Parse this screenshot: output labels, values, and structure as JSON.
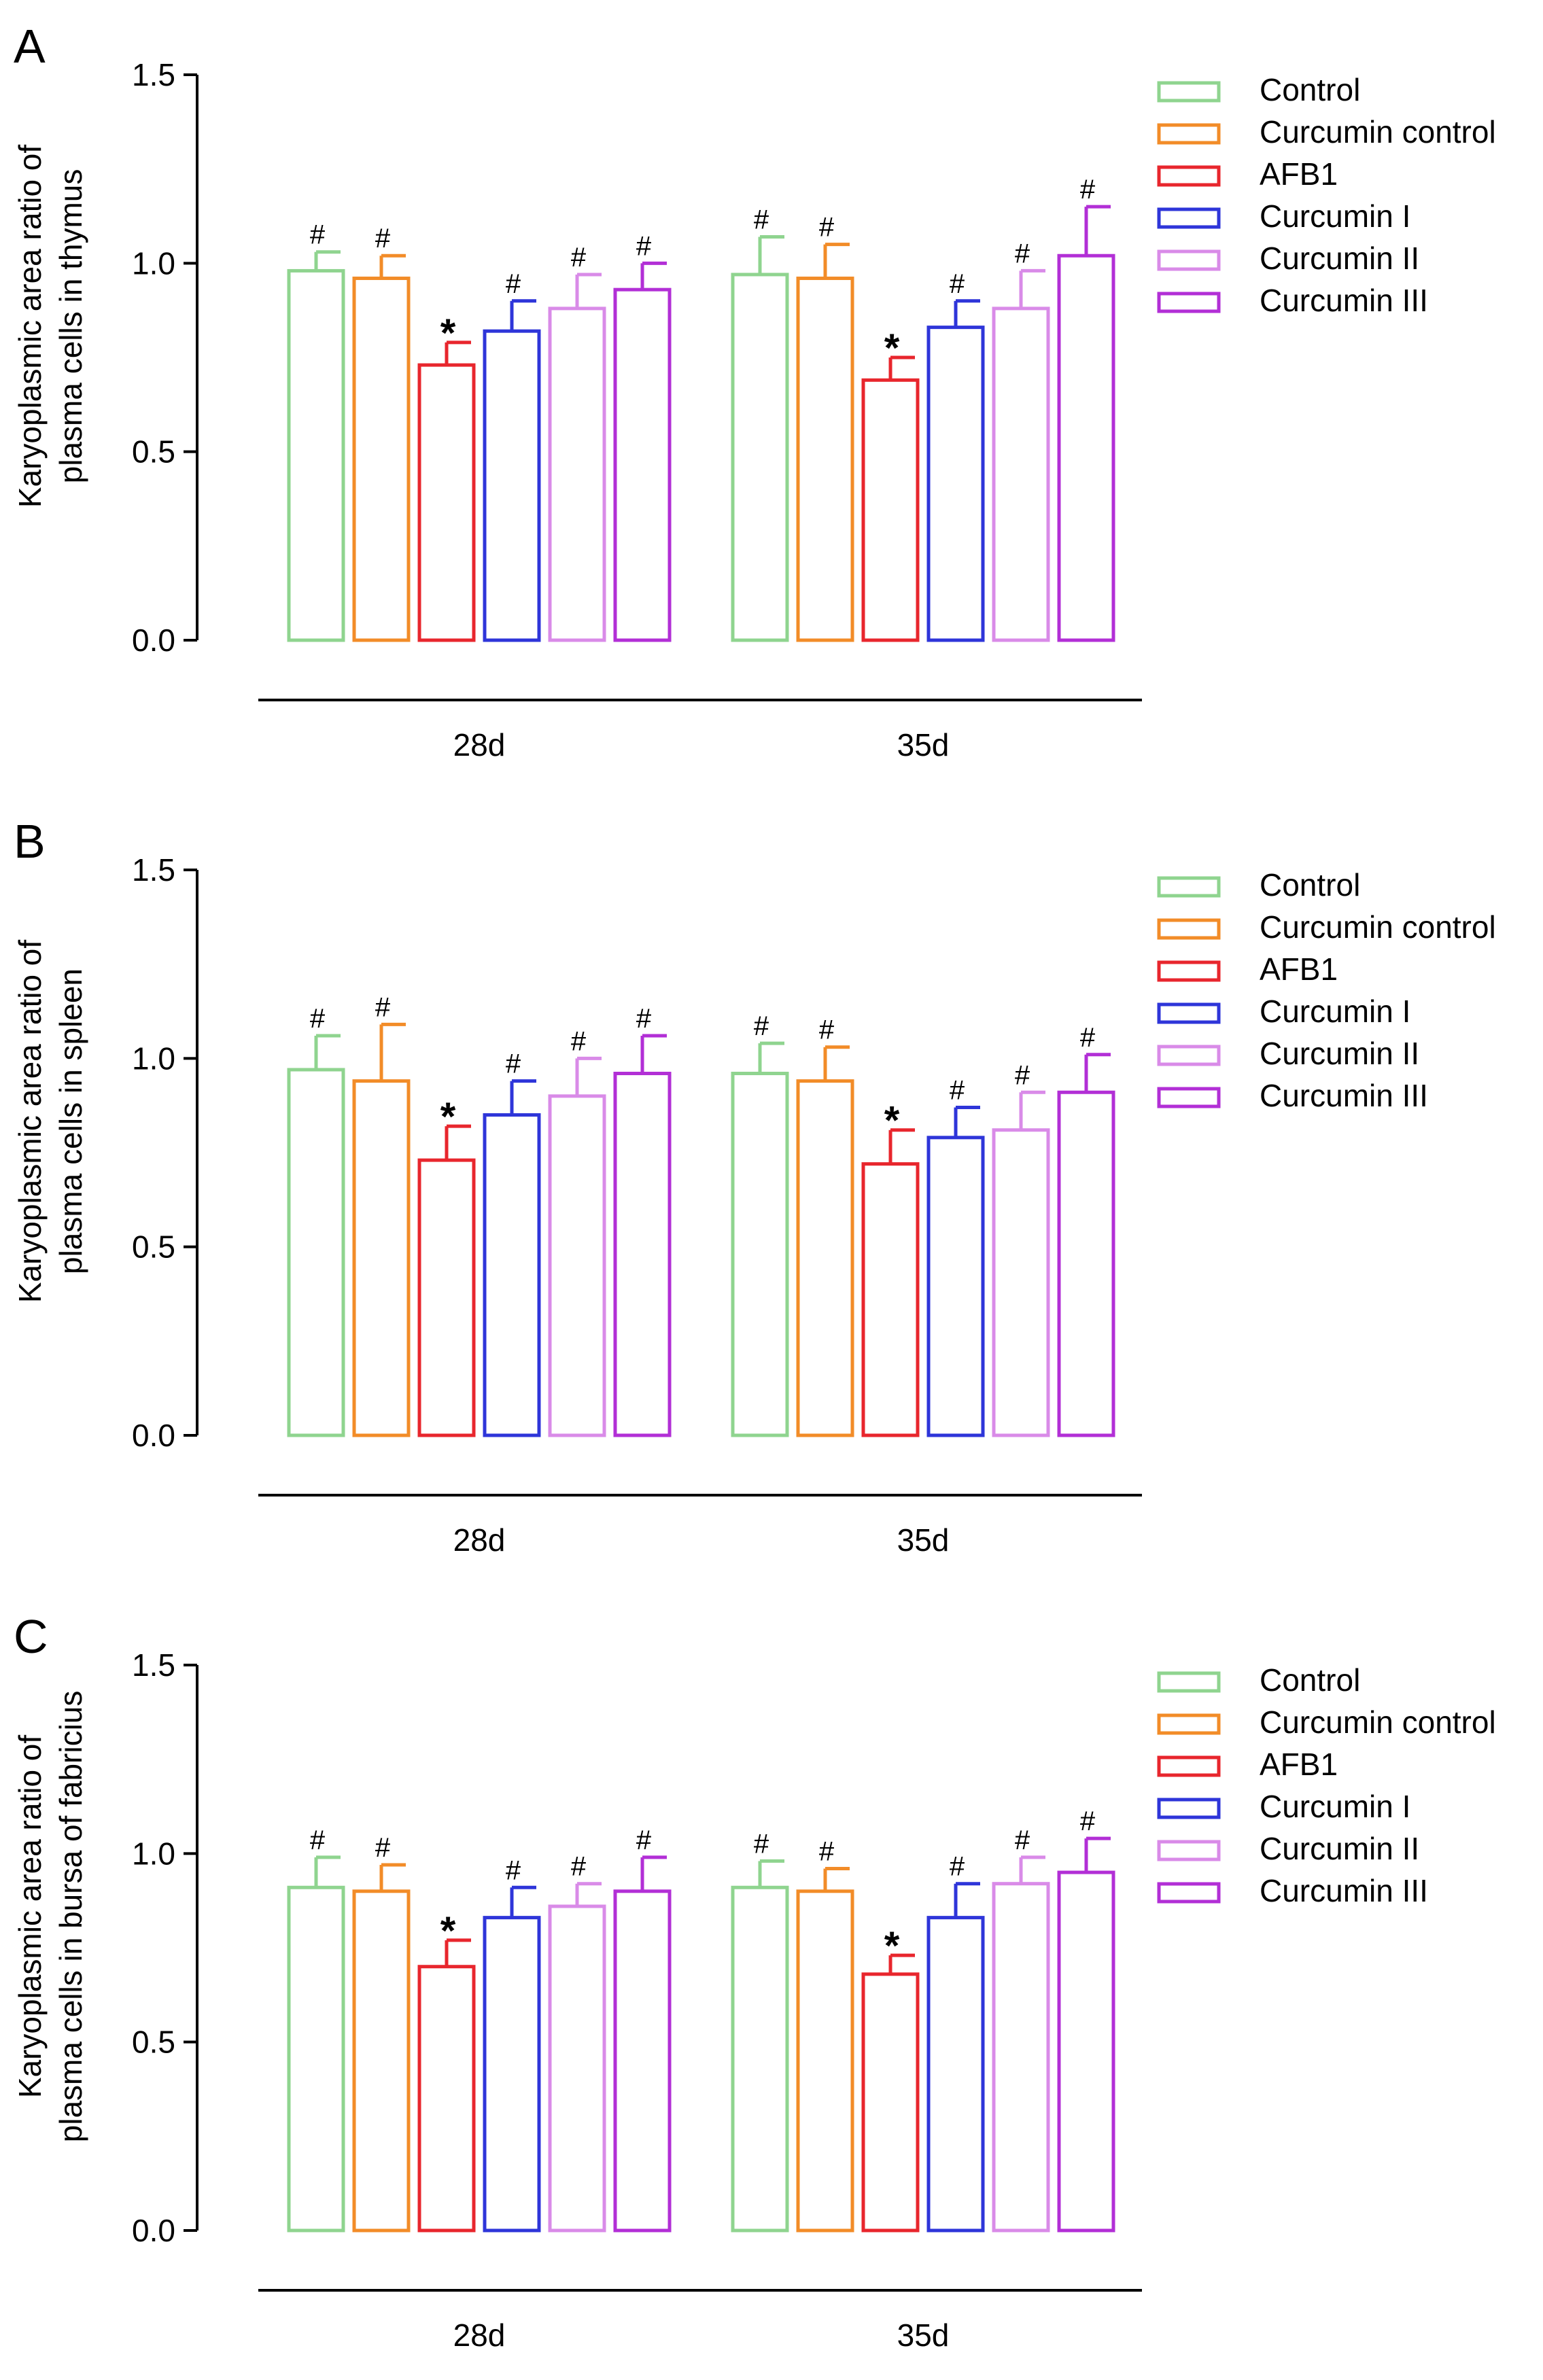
{
  "colors": {
    "axis": "#000000",
    "series": [
      "#8fd48f",
      "#f28c28",
      "#e8262d",
      "#2e35d9",
      "#d98be8",
      "#b22fd6"
    ]
  },
  "chart_data": [
    {
      "type": "bar",
      "panel_label": "A",
      "ylabel_lines": [
        "Karyoplasmic area ratio of",
        "plasma cells in thymus"
      ],
      "xlabel": "",
      "ylim": [
        0,
        1.5
      ],
      "ytick_labels": [
        "0.0",
        "0.5",
        "1.0",
        "1.5"
      ],
      "categories": [
        "28d",
        "35d"
      ],
      "legend_position": "top-right",
      "series": [
        {
          "name": "Control",
          "values": [
            0.98,
            0.97
          ],
          "errors": [
            0.05,
            0.1
          ],
          "marks": [
            "#",
            "#"
          ]
        },
        {
          "name": "Curcumin control",
          "values": [
            0.96,
            0.96
          ],
          "errors": [
            0.06,
            0.09
          ],
          "marks": [
            "#",
            "#"
          ]
        },
        {
          "name": "AFB1",
          "values": [
            0.73,
            0.69
          ],
          "errors": [
            0.06,
            0.06
          ],
          "marks": [
            "*",
            "*"
          ]
        },
        {
          "name": "Curcumin I",
          "values": [
            0.82,
            0.83
          ],
          "errors": [
            0.08,
            0.07
          ],
          "marks": [
            "#",
            "#"
          ]
        },
        {
          "name": "Curcumin II",
          "values": [
            0.88,
            0.88
          ],
          "errors": [
            0.09,
            0.1
          ],
          "marks": [
            "#",
            "#"
          ]
        },
        {
          "name": "Curcumin III",
          "values": [
            0.93,
            1.02
          ],
          "errors": [
            0.07,
            0.13
          ],
          "marks": [
            "#",
            "#"
          ]
        }
      ]
    },
    {
      "type": "bar",
      "panel_label": "B",
      "ylabel_lines": [
        "Karyoplasmic area ratio of",
        "plasma cells in spleen"
      ],
      "xlabel": "",
      "ylim": [
        0,
        1.5
      ],
      "ytick_labels": [
        "0.0",
        "0.5",
        "1.0",
        "1.5"
      ],
      "categories": [
        "28d",
        "35d"
      ],
      "legend_position": "top-right",
      "series": [
        {
          "name": "Control",
          "values": [
            0.97,
            0.96
          ],
          "errors": [
            0.09,
            0.08
          ],
          "marks": [
            "#",
            "#"
          ]
        },
        {
          "name": "Curcumin control",
          "values": [
            0.94,
            0.94
          ],
          "errors": [
            0.15,
            0.09
          ],
          "marks": [
            "#",
            "#"
          ]
        },
        {
          "name": "AFB1",
          "values": [
            0.73,
            0.72
          ],
          "errors": [
            0.09,
            0.09
          ],
          "marks": [
            "*",
            "*"
          ]
        },
        {
          "name": "Curcumin I",
          "values": [
            0.85,
            0.79
          ],
          "errors": [
            0.09,
            0.08
          ],
          "marks": [
            "#",
            "#"
          ]
        },
        {
          "name": "Curcumin II",
          "values": [
            0.9,
            0.81
          ],
          "errors": [
            0.1,
            0.1
          ],
          "marks": [
            "#",
            "#"
          ]
        },
        {
          "name": "Curcumin III",
          "values": [
            0.96,
            0.91
          ],
          "errors": [
            0.1,
            0.1
          ],
          "marks": [
            "#",
            "#"
          ]
        }
      ]
    },
    {
      "type": "bar",
      "panel_label": "C",
      "ylabel_lines": [
        "Karyoplasmic area ratio of",
        "plasma cells in bursa of fabricius"
      ],
      "xlabel": "",
      "ylim": [
        0,
        1.5
      ],
      "ytick_labels": [
        "0.0",
        "0.5",
        "1.0",
        "1.5"
      ],
      "categories": [
        "28d",
        "35d"
      ],
      "legend_position": "top-right",
      "series": [
        {
          "name": "Control",
          "values": [
            0.91,
            0.91
          ],
          "errors": [
            0.08,
            0.07
          ],
          "marks": [
            "#",
            "#"
          ]
        },
        {
          "name": "Curcumin control",
          "values": [
            0.9,
            0.9
          ],
          "errors": [
            0.07,
            0.06
          ],
          "marks": [
            "#",
            "#"
          ]
        },
        {
          "name": "AFB1",
          "values": [
            0.7,
            0.68
          ],
          "errors": [
            0.07,
            0.05
          ],
          "marks": [
            "*",
            "*"
          ]
        },
        {
          "name": "Curcumin I",
          "values": [
            0.83,
            0.83
          ],
          "errors": [
            0.08,
            0.09
          ],
          "marks": [
            "#",
            "#"
          ]
        },
        {
          "name": "Curcumin II",
          "values": [
            0.86,
            0.92
          ],
          "errors": [
            0.06,
            0.07
          ],
          "marks": [
            "#",
            "#"
          ]
        },
        {
          "name": "Curcumin III",
          "values": [
            0.9,
            0.95
          ],
          "errors": [
            0.09,
            0.09
          ],
          "marks": [
            "#",
            "#"
          ]
        }
      ]
    }
  ]
}
